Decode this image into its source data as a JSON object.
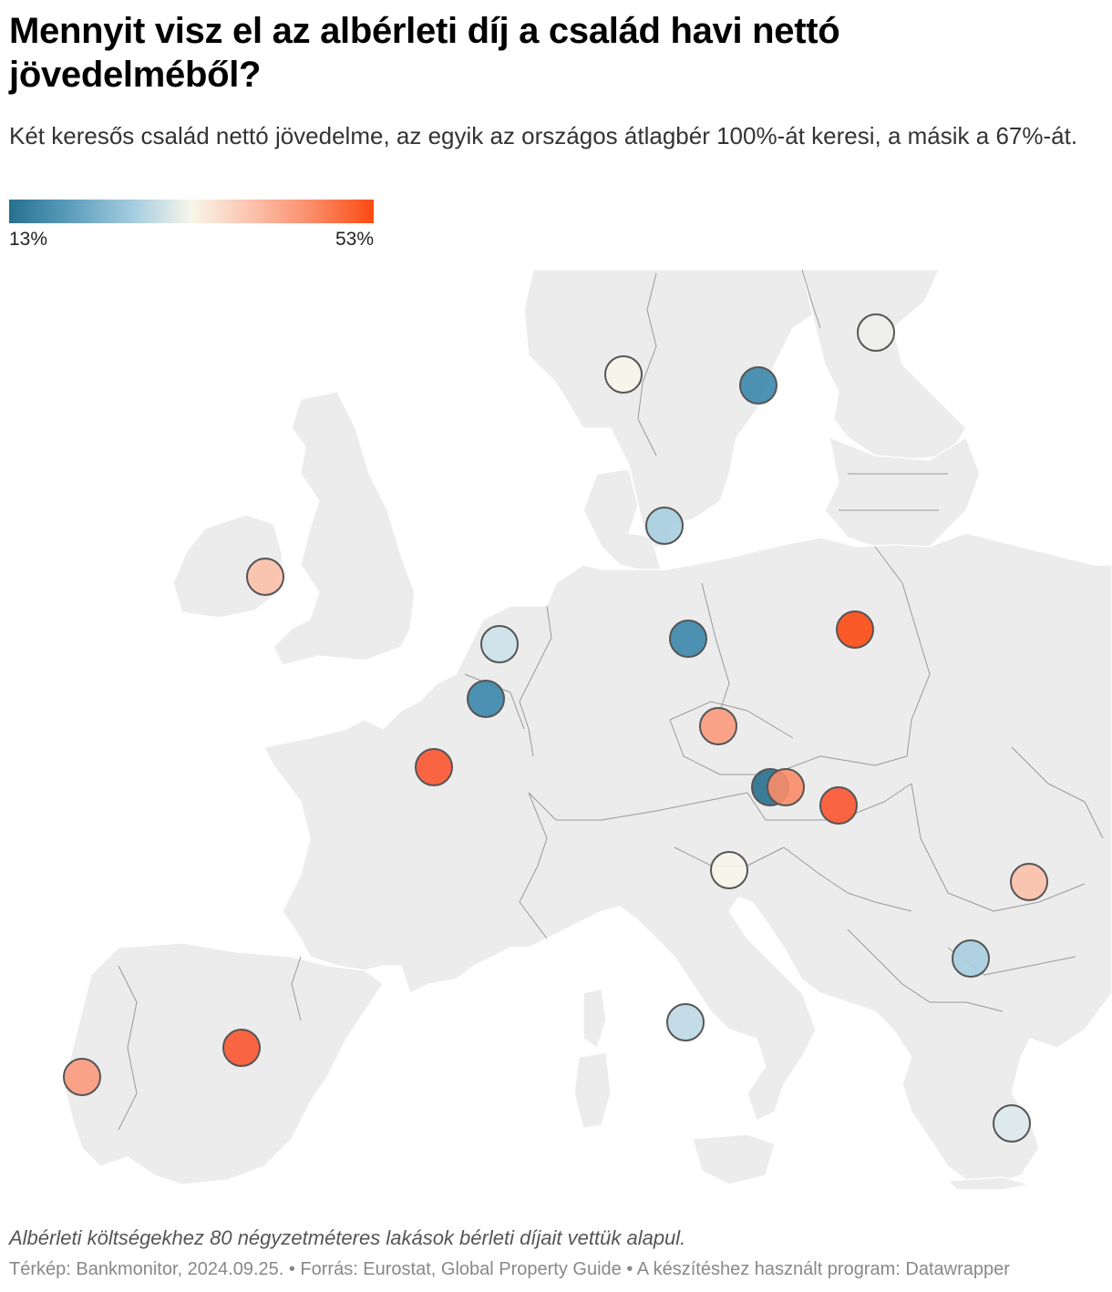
{
  "header": {
    "title": "Mennyit visz el az albérleti díj a család havi nettó jövedelméből?",
    "subtitle": "Két keresős család nettó jövedelme, az egyik az országos átlagbér 100%-át keresi, a másik a 67%-át."
  },
  "legend": {
    "min_label": "13%",
    "max_label": "53%",
    "colors": [
      "#27708f",
      "#5a9bbb",
      "#a9cfe1",
      "#f8f6ea",
      "#fbc7b3",
      "#fb8c68",
      "#fc4a12"
    ]
  },
  "map": {
    "land_color": "#ececec",
    "border_color": "#999999",
    "markers": [
      {
        "name": "marker-norway",
        "color": "#f8f6ea"
      },
      {
        "name": "marker-sweden",
        "color": "#3b87ab"
      },
      {
        "name": "marker-finland",
        "color": "#eef0ea"
      },
      {
        "name": "marker-denmark",
        "color": "#a9cfe1"
      },
      {
        "name": "marker-ireland",
        "color": "#fbc0aa"
      },
      {
        "name": "marker-netherlands",
        "color": "#cde2ea"
      },
      {
        "name": "marker-belgium",
        "color": "#3b87ab"
      },
      {
        "name": "marker-germany",
        "color": "#3b87ab"
      },
      {
        "name": "marker-poland",
        "color": "#fc4a12"
      },
      {
        "name": "marker-czechia",
        "color": "#fb9a7d"
      },
      {
        "name": "marker-austria",
        "color": "#27708f"
      },
      {
        "name": "marker-slovakia",
        "color": "#fb8c68"
      },
      {
        "name": "marker-hungary",
        "color": "#fb5530"
      },
      {
        "name": "marker-slovenia",
        "color": "#f8f6ea"
      },
      {
        "name": "marker-france",
        "color": "#fb5530"
      },
      {
        "name": "marker-romania",
        "color": "#fbc0aa"
      },
      {
        "name": "marker-bulgaria",
        "color": "#a9cfe1"
      },
      {
        "name": "marker-italy",
        "color": "#bcd8e5"
      },
      {
        "name": "marker-spain",
        "color": "#fb5530"
      },
      {
        "name": "marker-portugal",
        "color": "#fb9a7d"
      },
      {
        "name": "marker-greece",
        "color": "#dbe9ec"
      }
    ]
  },
  "notes": {
    "methodology": "Albérleti költségekhez 80 négyzetméteres lakások bérleti díjait vettük alapul.",
    "credits": "Térkép: Bankmonitor, 2024.09.25. • Forrás: Eurostat, Global Property Guide • A készítéshez használt program: Datawrapper"
  }
}
